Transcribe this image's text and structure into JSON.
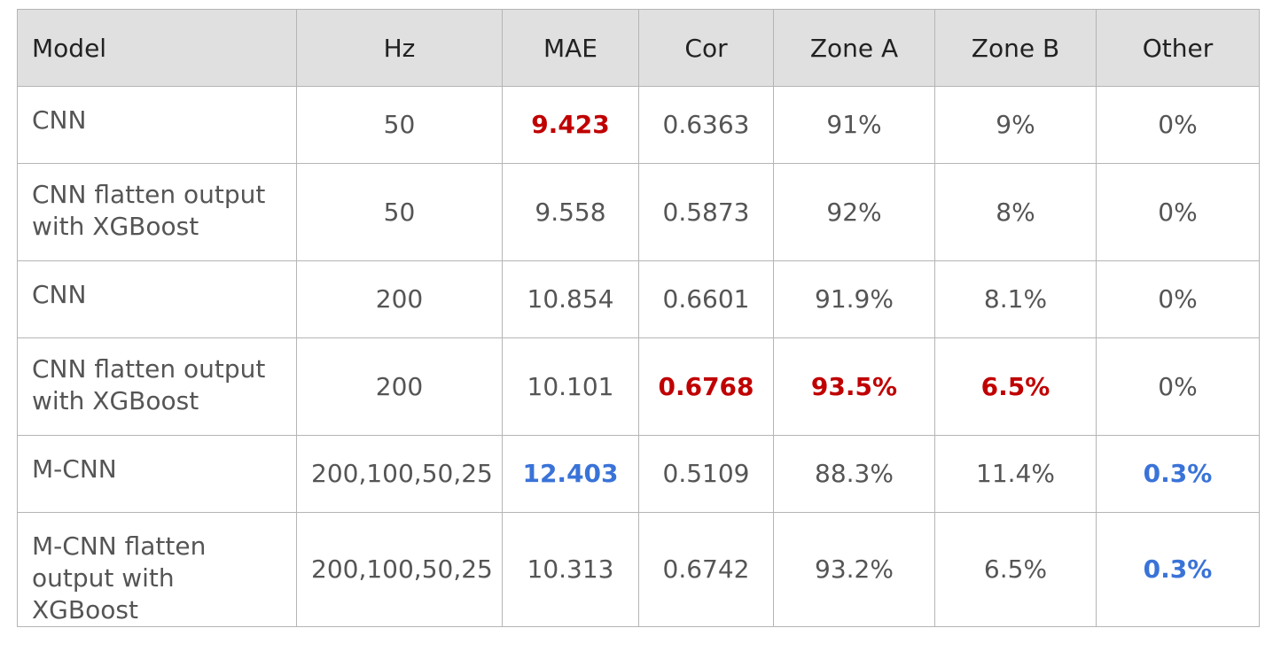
{
  "table": {
    "headers": [
      "Model",
      "Hz",
      "MAE",
      "Cor",
      "Zone A",
      "Zone B",
      "Other"
    ],
    "rows": [
      {
        "model": "CNN",
        "hz": "50",
        "mae": "9.423",
        "cor": "0.6363",
        "zone_a": "91%",
        "zone_b": "9%",
        "other": "0%"
      },
      {
        "model": "CNN flatten output with XGBoost",
        "hz": "50",
        "mae": "9.558",
        "cor": "0.5873",
        "zone_a": "92%",
        "zone_b": "8%",
        "other": "0%"
      },
      {
        "model": "CNN",
        "hz": "200",
        "mae": "10.854",
        "cor": "0.6601",
        "zone_a": "91.9%",
        "zone_b": "8.1%",
        "other": "0%"
      },
      {
        "model": "CNN flatten output with XGBoost",
        "hz": "200",
        "mae": "10.101",
        "cor": "0.6768",
        "zone_a": "93.5%",
        "zone_b": "6.5%",
        "other": "0%"
      },
      {
        "model": "M-CNN",
        "hz": "200,100,50,25",
        "mae": "12.403",
        "cor": "0.5109",
        "zone_a": "88.3%",
        "zone_b": "11.4%",
        "other": "0.3%"
      },
      {
        "model": "M-CNN flatten output with XGBoost",
        "hz": "200,100,50,25",
        "mae": "10.313",
        "cor": "0.6742",
        "zone_a": "93.2%",
        "zone_b": "6.5%",
        "other": "0.3%"
      }
    ]
  },
  "colors": {
    "best_highlight": "#c00000",
    "worst_highlight": "#3a73d8",
    "header_background": "#e0e0e0",
    "grid_line": "#b5b5b5",
    "body_text": "#555555"
  }
}
